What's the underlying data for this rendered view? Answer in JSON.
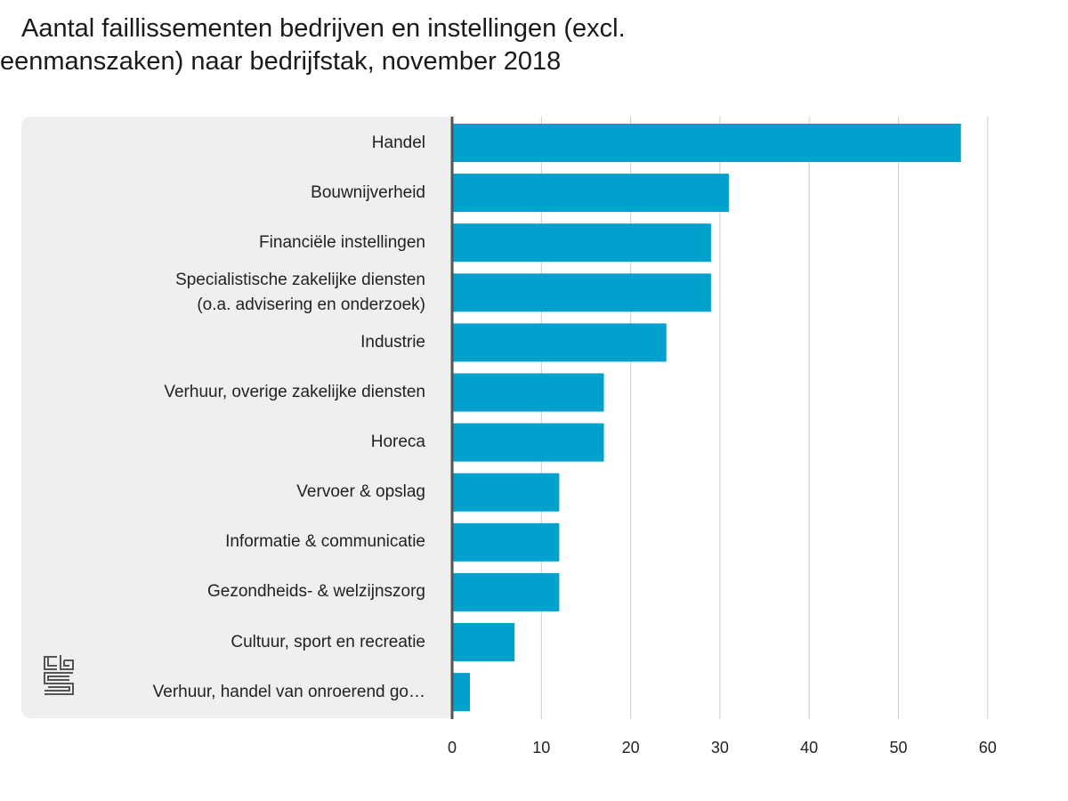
{
  "title_line1": "Aantal faillissementen bedrijven en instellingen (excl.",
  "title_line2": "eenmanszaken) naar bedrijfstak, november 2018",
  "colors": {
    "bar": "#00a1cd",
    "panel": "#efefef",
    "grid": "#cccccc",
    "axis": "#555555",
    "logo": "#555555"
  },
  "logo": {
    "icon": "cbs-logo-icon"
  },
  "chart_data": {
    "type": "bar",
    "orientation": "horizontal",
    "title": "Aantal faillissementen bedrijven en instellingen (excl. eenmanszaken) naar bedrijfstak, november 2018",
    "categories": [
      "Handel",
      "Bouwnijverheid",
      "Financiële instellingen",
      "Specialistische zakelijke diensten (o.a. advisering en onderzoek)",
      "Industrie",
      "Verhuur, overige zakelijke diensten",
      "Horeca",
      "Vervoer & opslag",
      "Informatie & communicatie",
      "Gezondheids- & welzijnszorg",
      "Cultuur, sport en recreatie",
      "Verhuur, handel van onroerend go…"
    ],
    "category_lines": [
      [
        "Handel"
      ],
      [
        "Bouwnijverheid"
      ],
      [
        "Financiële instellingen"
      ],
      [
        "Specialistische zakelijke diensten",
        "(o.a. advisering en onderzoek)"
      ],
      [
        "Industrie"
      ],
      [
        "Verhuur, overige zakelijke diensten"
      ],
      [
        "Horeca"
      ],
      [
        "Vervoer & opslag"
      ],
      [
        "Informatie & communicatie"
      ],
      [
        "Gezondheids- & welzijnszorg"
      ],
      [
        "Cultuur, sport en recreatie"
      ],
      [
        "Verhuur, handel van onroerend go…"
      ]
    ],
    "values": [
      57,
      31,
      29,
      29,
      24,
      17,
      17,
      12,
      12,
      12,
      7,
      2
    ],
    "xlim": [
      0,
      60
    ],
    "xticks": [
      0,
      10,
      20,
      30,
      40,
      50,
      60
    ],
    "xlabel": "",
    "ylabel": "",
    "grid": "vertical",
    "legend": "none"
  }
}
